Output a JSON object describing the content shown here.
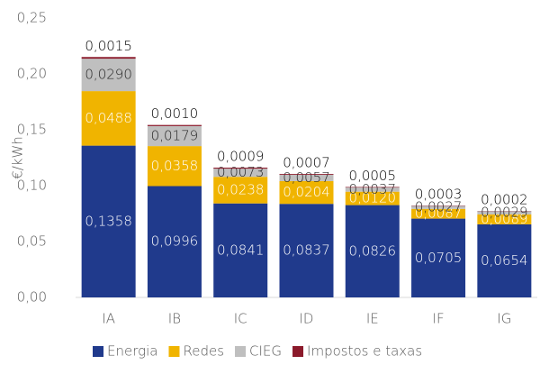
{
  "chart_data": {
    "type": "stacked_bar",
    "ylabel": "€/kWh",
    "categories": [
      "IA",
      "IB",
      "IC",
      "ID",
      "IE",
      "IF",
      "IG"
    ],
    "series": [
      {
        "name": "Energia",
        "color": "#203a8c",
        "label_color": "#ffffff",
        "values": [
          0.1358,
          0.0996,
          0.0841,
          0.0837,
          0.0826,
          0.0705,
          0.0654
        ],
        "value_labels": [
          "0,1358",
          "0,0996",
          "0,0841",
          "0,0837",
          "0,0826",
          "0,0705",
          "0,0654"
        ]
      },
      {
        "name": "Redes",
        "color": "#f0b400",
        "label_color": "#ffffff",
        "values": [
          0.0488,
          0.0358,
          0.0238,
          0.0204,
          0.012,
          0.0087,
          0.0089
        ],
        "value_labels": [
          "0,0488",
          "0,0358",
          "0,0238",
          "0,0204",
          "0,0120",
          "0,0087",
          "0,0089"
        ]
      },
      {
        "name": "CIEG",
        "color": "#bfbfbf",
        "label_color": "#262626",
        "values": [
          0.029,
          0.0179,
          0.0073,
          0.0057,
          0.0037,
          0.0027,
          0.0029
        ],
        "value_labels": [
          "0,0290",
          "0,0179",
          "0,0073",
          "0,0057",
          "0,0037",
          "0,0027",
          "0,0029"
        ]
      },
      {
        "name": "Impostos e taxas",
        "color": "#8b1a2b",
        "label_color": "#000000",
        "values": [
          0.0015,
          0.001,
          0.0009,
          0.0007,
          0.0005,
          0.0003,
          0.0002
        ],
        "value_labels": [
          "0,0015",
          "0,0010",
          "0,0009",
          "0,0007",
          "0,0005",
          "0,0003",
          "0,0002"
        ]
      }
    ],
    "ylim": [
      0,
      0.25
    ],
    "yticks": [
      {
        "value": 0,
        "label": "0,00"
      },
      {
        "value": 0.05,
        "label": "0,05"
      },
      {
        "value": 0.1,
        "label": "0,10"
      },
      {
        "value": 0.15,
        "label": "0,15"
      },
      {
        "value": 0.2,
        "label": "0,20"
      },
      {
        "value": 0.25,
        "label": "0,25"
      }
    ],
    "grid": false,
    "legend": "bottom"
  }
}
